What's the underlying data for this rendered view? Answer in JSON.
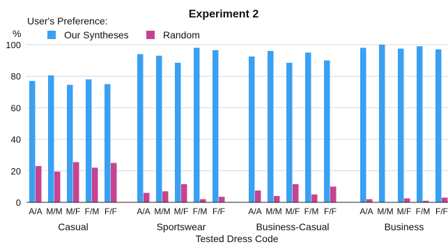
{
  "chart_data": {
    "type": "bar",
    "title": "Experiment 2",
    "legend_title": "User's Preference:",
    "yunit": "%",
    "xlabel": "Tested Dress Code",
    "ylim": [
      0,
      100
    ],
    "yticks": [
      0,
      20,
      40,
      60,
      80,
      100
    ],
    "grid": true,
    "legend_position": "top-left",
    "groups": [
      {
        "name": "Casual",
        "categories": [
          "A/A",
          "M/M",
          "M/F",
          "F/M",
          "F/F"
        ]
      },
      {
        "name": "Sportswear",
        "categories": [
          "A/A",
          "M/M",
          "M/F",
          "F/M",
          "F/F"
        ]
      },
      {
        "name": "Business-Casual",
        "categories": [
          "A/A",
          "M/M",
          "M/F",
          "F/M",
          "F/F"
        ]
      },
      {
        "name": "Business",
        "categories": [
          "A/A",
          "M/M",
          "M/F",
          "F/M",
          "F/F"
        ]
      }
    ],
    "series": [
      {
        "name": "Our Syntheses",
        "color": "#3aa0f2",
        "values": [
          [
            77,
            80.5,
            74.5,
            78,
            75
          ],
          [
            94,
            93,
            88.5,
            98,
            96.5
          ],
          [
            92.5,
            96,
            88.5,
            95,
            90
          ],
          [
            98,
            100,
            97.5,
            99,
            97
          ]
        ]
      },
      {
        "name": "Random",
        "color": "#c8438f",
        "values": [
          [
            23,
            19.5,
            25.5,
            22,
            25
          ],
          [
            6,
            7,
            11.5,
            2,
            3.5
          ],
          [
            7.5,
            4,
            11.5,
            5,
            10
          ],
          [
            2,
            0,
            2.5,
            1,
            3
          ]
        ]
      }
    ]
  }
}
